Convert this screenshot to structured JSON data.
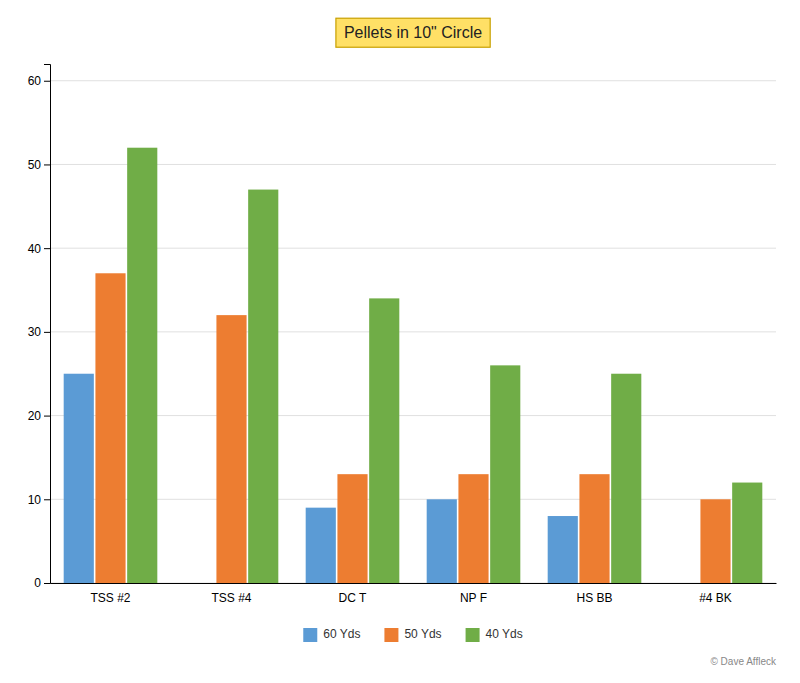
{
  "chart_data": {
    "type": "bar",
    "title": "Pellets in 10\" Circle",
    "categories": [
      "TSS #2",
      "TSS #4",
      "DC T",
      "NP F",
      "HS BB",
      "#4 BK"
    ],
    "series": [
      {
        "name": "60 Yds",
        "color": "#5B9BD5",
        "values": [
          25,
          0,
          9,
          10,
          8,
          0
        ]
      },
      {
        "name": "50 Yds",
        "color": "#ED7D31",
        "values": [
          37,
          32,
          13,
          13,
          13,
          10
        ]
      },
      {
        "name": "40 Yds",
        "color": "#70AD47",
        "values": [
          52,
          47,
          34,
          26,
          25,
          12
        ]
      }
    ],
    "ylim": [
      0,
      62
    ],
    "yticks": [
      0,
      10,
      20,
      30,
      40,
      50,
      60
    ],
    "grid": true,
    "legend": "bottom",
    "annotations": [
      "© Dave Affleck"
    ]
  }
}
